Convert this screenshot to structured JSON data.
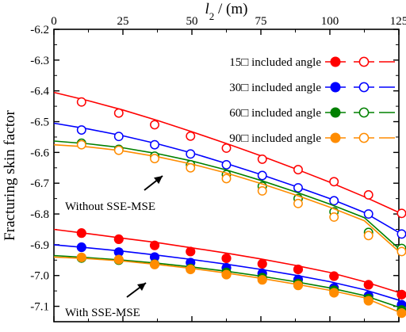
{
  "chart_data": {
    "type": "line",
    "xlabel_symbol": "l",
    "xlabel_subscript": "2",
    "xlabel_unit": " / (m)",
    "ylabel": "Fracturing skin factor",
    "xlim": [
      0,
      125
    ],
    "ylim": [
      -7.15,
      -6.2
    ],
    "xticks": [
      0,
      25,
      50,
      75,
      100,
      125
    ],
    "yticks": [
      -6.2,
      -6.3,
      -6.4,
      -6.5,
      -6.6,
      -6.7,
      -6.8,
      -6.9,
      -7.0,
      -7.1
    ],
    "ytick_labels": [
      "-6.2",
      "-6.3",
      "-6.4",
      "-6.5",
      "-6.6",
      "-6.7",
      "-6.8",
      "-6.9",
      "-7.0",
      "-7.1"
    ],
    "x": [
      0,
      12.5,
      25,
      37.5,
      50,
      62.5,
      75,
      87.5,
      100,
      112.5,
      125
    ],
    "marker_x": [
      10,
      23.5,
      36.5,
      49.5,
      62.5,
      75.5,
      88.5,
      101.5,
      114,
      126
    ],
    "series": [
      {
        "name": "15□ included angle",
        "color": "#ff0000",
        "without": [
          -6.405,
          -6.432,
          -6.462,
          -6.496,
          -6.533,
          -6.571,
          -6.611,
          -6.653,
          -6.697,
          -6.744,
          -6.795
        ],
        "with": [
          -6.85,
          -6.864,
          -6.879,
          -6.893,
          -6.91,
          -6.927,
          -6.946,
          -6.967,
          -6.99,
          -7.02,
          -7.055
        ]
      },
      {
        "name": "30□ included angle",
        "color": "#0000ff",
        "without": [
          -6.505,
          -6.524,
          -6.546,
          -6.572,
          -6.602,
          -6.636,
          -6.672,
          -6.71,
          -6.75,
          -6.795,
          -6.86
        ]
      },
      {
        "name": "60□ included angle",
        "color": "#008000",
        "without": [
          -6.563,
          -6.572,
          -6.585,
          -6.604,
          -6.628,
          -6.657,
          -6.691,
          -6.728,
          -6.768,
          -6.812,
          -6.912
        ]
      },
      {
        "name": "90□ included angle",
        "color": "#ff8c00",
        "without": [
          -6.575,
          -6.582,
          -6.595,
          -6.614,
          -6.638,
          -6.667,
          -6.701,
          -6.738,
          -6.778,
          -6.822,
          -6.922
        ]
      }
    ],
    "with_curves": [
      [
        -6.85,
        -6.864,
        -6.879,
        -6.893,
        -6.91,
        -6.927,
        -6.946,
        -6.967,
        -6.99,
        -7.02,
        -7.055
      ],
      [
        -6.9,
        -6.91,
        -6.921,
        -6.934,
        -6.948,
        -6.963,
        -6.98,
        -6.999,
        -7.02,
        -7.046,
        -7.08
      ],
      [
        -6.935,
        -6.942,
        -6.95,
        -6.96,
        -6.972,
        -6.986,
        -7.002,
        -7.02,
        -7.04,
        -7.065,
        -7.103
      ],
      [
        -6.94,
        -6.945,
        -6.953,
        -6.964,
        -6.977,
        -6.992,
        -7.009,
        -7.028,
        -7.048,
        -7.072,
        -7.118
      ]
    ],
    "with_markers": [
      [
        -6.862,
        -6.882,
        -6.902,
        -6.922,
        -6.944,
        -6.962,
        -6.98,
        -7.002,
        -7.03,
        -7.062
      ],
      [
        -6.908,
        -6.924,
        -6.94,
        -6.958,
        -6.975,
        -6.993,
        -7.013,
        -7.04,
        -7.066,
        -7.095
      ],
      [
        -6.943,
        -6.95,
        -6.963,
        -6.977,
        -6.99,
        -7.007,
        -7.026,
        -7.048,
        -7.075,
        -7.112
      ],
      [
        -6.941,
        -6.948,
        -6.964,
        -6.98,
        -6.997,
        -7.014,
        -7.032,
        -7.056,
        -7.082,
        -7.122
      ]
    ],
    "without_markers": [
      [
        -6.436,
        -6.472,
        -6.51,
        -6.547,
        -6.586,
        -6.622,
        -6.656,
        -6.695,
        -6.738,
        -6.798
      ],
      [
        -6.527,
        -6.548,
        -6.575,
        -6.605,
        -6.64,
        -6.675,
        -6.715,
        -6.757,
        -6.8,
        -6.865
      ],
      [
        -6.57,
        -6.59,
        -6.612,
        -6.64,
        -6.672,
        -6.71,
        -6.75,
        -6.793,
        -6.86,
        -6.912
      ],
      [
        -6.575,
        -6.593,
        -6.62,
        -6.65,
        -6.685,
        -6.725,
        -6.766,
        -6.81,
        -6.87,
        -6.922
      ]
    ],
    "annotations": {
      "without": "Without SSE-MSE",
      "with": "With SSE-MSE"
    },
    "legend_position": "top-right",
    "grid": false
  }
}
